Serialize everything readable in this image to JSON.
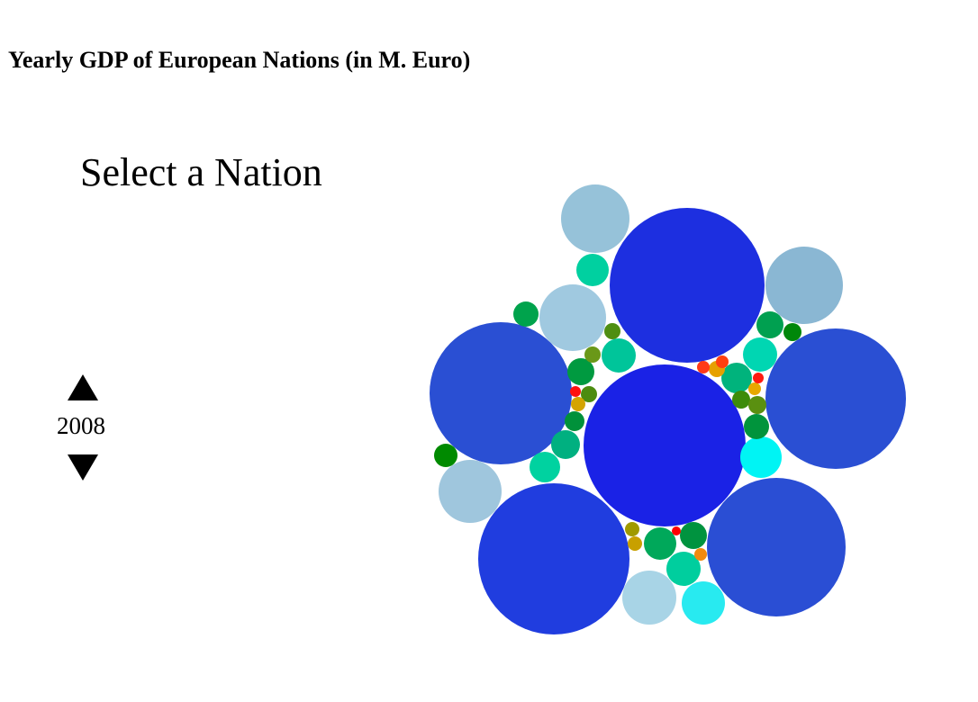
{
  "header": {
    "title": "Yearly GDP of European Nations (in M. Euro)"
  },
  "selector": {
    "label": "Select a Nation"
  },
  "year_control": {
    "year": "2008",
    "up_icon": "triangle-up-icon",
    "down_icon": "triangle-down-icon"
  },
  "chart_data": {
    "type": "bubble",
    "title": "Yearly GDP of European Nations (in M. Euro)",
    "year": "2008",
    "colors": {
      "largest": "#1a22e6",
      "large": "#2a4fd3",
      "medium": "#96c2d9",
      "small": "#00d0a0",
      "smaller": "#009a3c",
      "tiny": "#e6a000",
      "smallest": "#ff1010"
    },
    "bubbles": [
      {
        "value": 2500000,
        "color": "#1a22e6"
      },
      {
        "value": 2000000,
        "color": "#1d2fe0"
      },
      {
        "value": 1830000,
        "color": "#2a4fd3"
      },
      {
        "value": 1790000,
        "color": "#2a4fd3"
      },
      {
        "value": 1840000,
        "color": "#203ddf"
      },
      {
        "value": 1600000,
        "color": "#2a4ed4"
      },
      {
        "value": 475000,
        "color": "#8ab7d3"
      },
      {
        "value": 375000,
        "color": "#96c2d9"
      },
      {
        "value": 365000,
        "color": "#a0c9e0"
      },
      {
        "value": 370000,
        "color": "#9fc6dd"
      },
      {
        "value": 310000,
        "color": "#a8d4e6"
      },
      {
        "value": 187000,
        "color": "#00f4f4"
      },
      {
        "value": 190000,
        "color": "#28eaf0"
      },
      {
        "value": 120000,
        "color": "#00d0a0"
      },
      {
        "value": 150000,
        "color": "#00d6b2"
      },
      {
        "value": 125000,
        "color": "#00c59a"
      },
      {
        "value": 135000,
        "color": "#00d2a0"
      },
      {
        "value": 115000,
        "color": "#00b080"
      },
      {
        "value": 110000,
        "color": "#00a85a"
      },
      {
        "value": 125000,
        "color": "#00ce9e"
      },
      {
        "value": 110000,
        "color": "#00b37c"
      },
      {
        "value": 90000,
        "color": "#009a40"
      },
      {
        "value": 85000,
        "color": "#00a050"
      },
      {
        "value": 88000,
        "color": "#00933f"
      },
      {
        "value": 82000,
        "color": "#00a34c"
      },
      {
        "value": 75000,
        "color": "#00943c"
      },
      {
        "value": 70000,
        "color": "#00913a"
      },
      {
        "value": 60000,
        "color": "#008a00"
      },
      {
        "value": 42000,
        "color": "#00870a"
      },
      {
        "value": 45000,
        "color": "#3d8c0a"
      },
      {
        "value": 40000,
        "color": "#5a9010"
      },
      {
        "value": 38000,
        "color": "#4c8c10"
      },
      {
        "value": 36000,
        "color": "#4f8e12"
      },
      {
        "value": 35000,
        "color": "#6a9818"
      },
      {
        "value": 30000,
        "color": "#a09a00"
      },
      {
        "value": 28000,
        "color": "#c8a000"
      },
      {
        "value": 27000,
        "color": "#d4a400"
      },
      {
        "value": 25000,
        "color": "#e6a000"
      },
      {
        "value": 22000,
        "color": "#e8a800"
      },
      {
        "value": 22000,
        "color": "#f08a10"
      },
      {
        "value": 20000,
        "color": "#ff4010"
      },
      {
        "value": 19000,
        "color": "#ff3a18"
      },
      {
        "value": 16000,
        "color": "#ff1a10"
      },
      {
        "value": 15000,
        "color": "#ff1010"
      },
      {
        "value": 10000,
        "color": "#ff0000"
      }
    ]
  }
}
